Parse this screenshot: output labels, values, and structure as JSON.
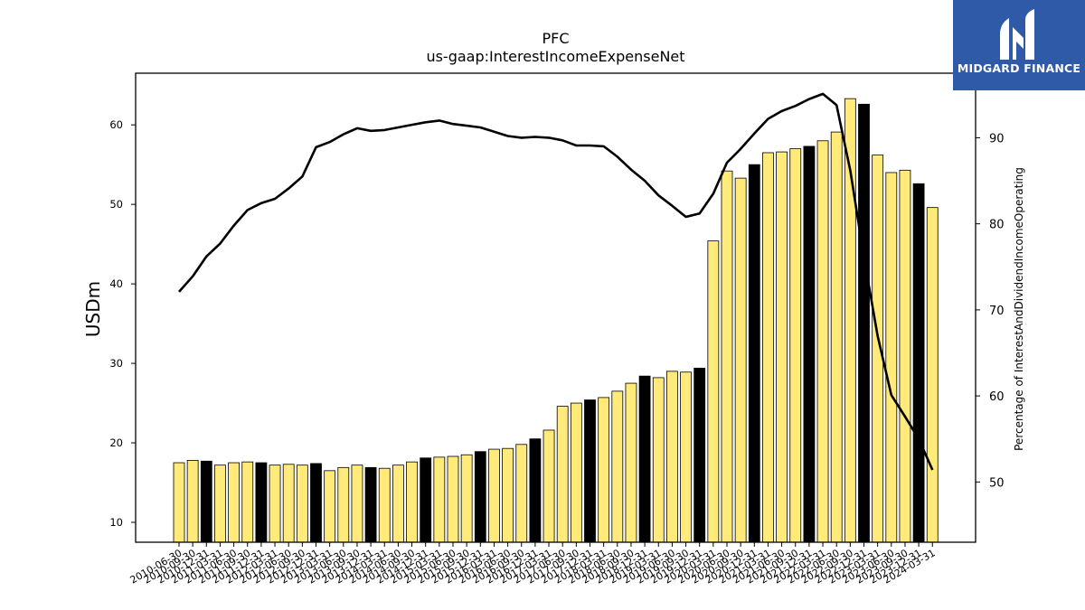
{
  "chart_data": {
    "type": "bar",
    "title": "PFC",
    "subtitle": "us-gaap:InterestIncomeExpenseNet",
    "ylabel": "USDm",
    "y2label": "Percentage of InterestAndDividendIncomeOperating",
    "ylim": [
      7.5,
      66.5
    ],
    "y2lim": [
      43,
      97.5
    ],
    "yticks": [
      10,
      20,
      30,
      40,
      50,
      60
    ],
    "y2ticks": [
      50,
      60,
      70,
      80,
      90
    ],
    "grid": false,
    "legend": "none",
    "colors": {
      "bar_yellow": "#ffea7a",
      "bar_black": "#000000",
      "line": "#000000",
      "edge": "#000000"
    },
    "categories": [
      "2010-06-30",
      "2010-09-30",
      "2010-12-31",
      "2011-03-31",
      "2011-06-30",
      "2011-09-30",
      "2011-12-31",
      "2012-03-31",
      "2012-06-30",
      "2012-09-30",
      "2012-12-31",
      "2013-03-31",
      "2013-06-30",
      "2013-09-30",
      "2013-12-31",
      "2014-03-31",
      "2014-06-30",
      "2014-09-30",
      "2014-12-31",
      "2015-03-31",
      "2015-06-30",
      "2015-09-30",
      "2015-12-31",
      "2016-03-31",
      "2016-06-30",
      "2016-09-30",
      "2016-12-31",
      "2017-03-31",
      "2017-06-30",
      "2017-09-30",
      "2017-12-31",
      "2018-03-31",
      "2018-06-30",
      "2018-09-30",
      "2018-12-31",
      "2019-03-31",
      "2019-06-30",
      "2019-09-30",
      "2019-12-31",
      "2020-03-31",
      "2020-06-30",
      "2020-09-30",
      "2020-12-31",
      "2021-03-31",
      "2021-06-30",
      "2021-09-30",
      "2021-12-31",
      "2022-03-31",
      "2022-06-30",
      "2022-09-30",
      "2022-12-31",
      "2023-03-31",
      "2023-06-30",
      "2023-09-30",
      "2023-12-31",
      "2024-03-31"
    ],
    "series": [
      {
        "type": "bar",
        "values": [
          17.5,
          17.8,
          17.7,
          17.2,
          17.5,
          17.6,
          17.5,
          17.2,
          17.3,
          17.2,
          17.4,
          16.5,
          16.9,
          17.2,
          16.9,
          16.8,
          17.2,
          17.6,
          18.1,
          18.2,
          18.3,
          18.5,
          18.9,
          19.2,
          19.3,
          19.8,
          20.5,
          21.6,
          24.6,
          25.0,
          25.4,
          25.7,
          26.5,
          27.5,
          28.4,
          28.2,
          29.0,
          28.9,
          29.4,
          45.4,
          54.2,
          53.3,
          55.0,
          56.5,
          56.6,
          57.0,
          57.3,
          58.0,
          59.1,
          63.3,
          62.6,
          56.2,
          54.0,
          54.3,
          52.6,
          49.6
        ],
        "highlight": [
          false,
          false,
          true,
          false,
          false,
          false,
          true,
          false,
          false,
          false,
          true,
          false,
          false,
          false,
          true,
          false,
          false,
          false,
          true,
          false,
          false,
          false,
          true,
          false,
          false,
          false,
          true,
          false,
          false,
          false,
          true,
          false,
          false,
          false,
          true,
          false,
          false,
          false,
          true,
          false,
          false,
          false,
          true,
          false,
          false,
          false,
          true,
          false,
          false,
          false,
          true,
          false,
          false,
          false,
          true,
          false
        ]
      },
      {
        "type": "line",
        "axis": "right",
        "values": [
          72.1,
          73.9,
          76.2,
          77.7,
          79.8,
          81.6,
          82.4,
          82.9,
          84.1,
          85.5,
          88.9,
          89.5,
          90.4,
          91.1,
          90.8,
          90.9,
          91.2,
          91.5,
          91.8,
          92.0,
          91.6,
          91.4,
          91.2,
          90.7,
          90.2,
          90.0,
          90.1,
          90.0,
          89.7,
          89.1,
          89.1,
          89.0,
          87.8,
          86.3,
          85.0,
          83.3,
          82.1,
          80.8,
          81.2,
          83.5,
          87.1,
          88.7,
          90.5,
          92.2,
          93.1,
          93.7,
          94.5,
          95.1,
          93.8,
          86.2,
          76.1,
          67.0,
          60.1,
          57.6,
          55.0,
          51.4
        ]
      }
    ]
  },
  "logo": {
    "text": "MIDGARD FINANCE",
    "icon": "midgard-logo-icon"
  }
}
